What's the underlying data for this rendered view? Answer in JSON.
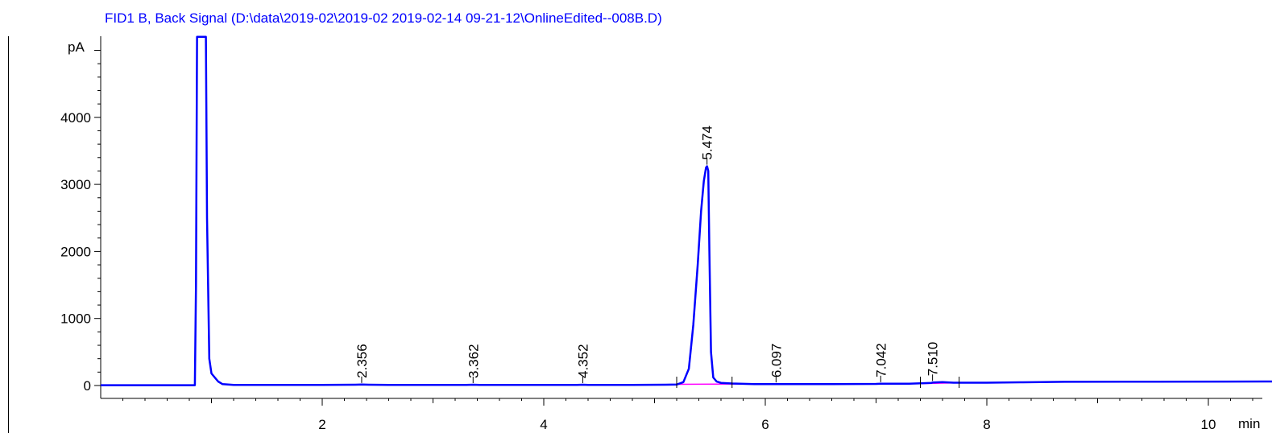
{
  "chart_data": {
    "type": "line",
    "title": "FID1 B, Back Signal (D:\\data\\2019-02\\2019-02 2019-02-14 09-21-12\\OnlineEdited--008B.D)",
    "xlabel": "min",
    "ylabel": "pA",
    "xlim": [
      0,
      11.3
    ],
    "ylim": [
      -200,
      5200
    ],
    "x_ticks": [
      2,
      4,
      6,
      8,
      10
    ],
    "x_tick_labels": [
      "2",
      "4",
      "6",
      "8",
      "10"
    ],
    "y_ticks": [
      0,
      1000,
      2000,
      3000,
      4000
    ],
    "y_tick_labels": [
      "0",
      "1000",
      "2000",
      "3000",
      "4000"
    ],
    "grid": false,
    "colors": {
      "signal": "#0000ff",
      "baseline": "#ff00ff",
      "title": "#0000ff",
      "axis": "#000000"
    },
    "series": [
      {
        "x": [
          0,
          0.5,
          0.8,
          0.85,
          0.86,
          0.87,
          0.9,
          0.92,
          0.93,
          0.94,
          0.95,
          0.96,
          0.98,
          1.0,
          1.03,
          1.06,
          1.1,
          1.2,
          1.5,
          2.0,
          2.3,
          2.356,
          2.42,
          2.6,
          3.0,
          3.3,
          3.362,
          3.42,
          3.7,
          4.0,
          4.3,
          4.352,
          4.4,
          4.8,
          5.1,
          5.2,
          5.26,
          5.31,
          5.35,
          5.39,
          5.42,
          5.445,
          5.465,
          5.474,
          5.485,
          5.495,
          5.51,
          5.53,
          5.56,
          5.6,
          5.7,
          5.9,
          6.097,
          6.3,
          6.6,
          7.0,
          7.042,
          7.3,
          7.4,
          7.5,
          7.51,
          7.6,
          7.7,
          8.0,
          8.3,
          8.7,
          9.5,
          10.5,
          11.3
        ],
        "y": [
          5,
          5,
          5,
          5,
          1500,
          5200,
          5200,
          5200,
          5200,
          5200,
          5200,
          2500,
          400,
          180,
          120,
          60,
          20,
          10,
          10,
          10,
          12,
          14,
          12,
          10,
          10,
          10,
          12,
          10,
          10,
          10,
          10,
          12,
          10,
          10,
          12,
          15,
          50,
          250,
          900,
          1800,
          2600,
          3050,
          3250,
          3270,
          3200,
          2000,
          500,
          120,
          60,
          40,
          30,
          22,
          22,
          22,
          22,
          24,
          26,
          28,
          32,
          40,
          45,
          50,
          42,
          42,
          48,
          55,
          58,
          60,
          60
        ]
      }
    ],
    "baseline_segments": [
      {
        "x": [
          5.2,
          6.0
        ],
        "y": [
          18,
          25
        ]
      },
      {
        "x": [
          7.4,
          7.75
        ],
        "y": [
          28,
          40
        ]
      }
    ],
    "peaks": [
      {
        "rt": 2.356,
        "label": "2.356"
      },
      {
        "rt": 3.362,
        "label": "3.362"
      },
      {
        "rt": 4.352,
        "label": "4.352"
      },
      {
        "rt": 5.474,
        "label": "5.474"
      },
      {
        "rt": 6.097,
        "label": "6.097"
      },
      {
        "rt": 7.042,
        "label": "7.042"
      },
      {
        "rt": 7.51,
        "label": "7.510"
      }
    ],
    "integration_marks": [
      5.2,
      5.7,
      7.4,
      7.75
    ]
  }
}
